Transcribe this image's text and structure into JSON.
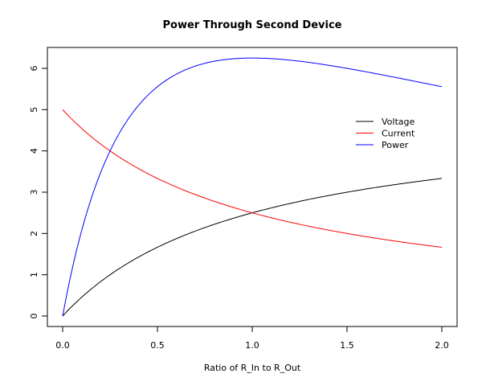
{
  "chart_data": {
    "type": "line",
    "title": "Power Through Second Device",
    "xlabel": "Ratio of R_In to R_Out",
    "ylabel": "",
    "xlim": [
      0,
      2
    ],
    "ylim": [
      0,
      6
    ],
    "x_ticks": [
      "0.0",
      "0.5",
      "1.0",
      "1.5",
      "2.0"
    ],
    "y_ticks": [
      "0",
      "1",
      "2",
      "3",
      "4",
      "5",
      "6"
    ],
    "grid": false,
    "legend_position": "upper right (inside plot)",
    "x": [
      0,
      0.1,
      0.2,
      0.25,
      0.3,
      0.4,
      0.5,
      0.6,
      0.7,
      0.8,
      0.9,
      1.0,
      1.1,
      1.2,
      1.3,
      1.4,
      1.5,
      1.6,
      1.7,
      1.8,
      1.9,
      2.0
    ],
    "series": [
      {
        "name": "Voltage",
        "color": "#000000",
        "values": [
          0,
          0.45,
          0.83,
          1.0,
          1.15,
          1.43,
          1.67,
          1.88,
          2.06,
          2.22,
          2.37,
          2.5,
          2.62,
          2.73,
          2.83,
          2.92,
          3.0,
          3.08,
          3.15,
          3.21,
          3.28,
          3.33
        ]
      },
      {
        "name": "Current",
        "color": "#ff0000",
        "values": [
          5.0,
          4.55,
          4.17,
          4.0,
          3.85,
          3.57,
          3.33,
          3.13,
          2.94,
          2.78,
          2.63,
          2.5,
          2.38,
          2.27,
          2.17,
          2.08,
          2.0,
          1.92,
          1.85,
          1.79,
          1.72,
          1.67
        ]
      },
      {
        "name": "Power",
        "color": "#0000ff",
        "values": [
          0,
          2.07,
          3.47,
          4.0,
          4.44,
          5.1,
          5.56,
          5.86,
          6.06,
          6.17,
          6.23,
          6.25,
          6.24,
          6.2,
          6.15,
          6.08,
          6.0,
          5.92,
          5.84,
          5.76,
          5.68,
          5.56
        ]
      }
    ]
  },
  "legend": {
    "items": [
      {
        "label": "Voltage",
        "color": "#000000"
      },
      {
        "label": "Current",
        "color": "#ff0000"
      },
      {
        "label": "Power",
        "color": "#0000ff"
      }
    ]
  }
}
